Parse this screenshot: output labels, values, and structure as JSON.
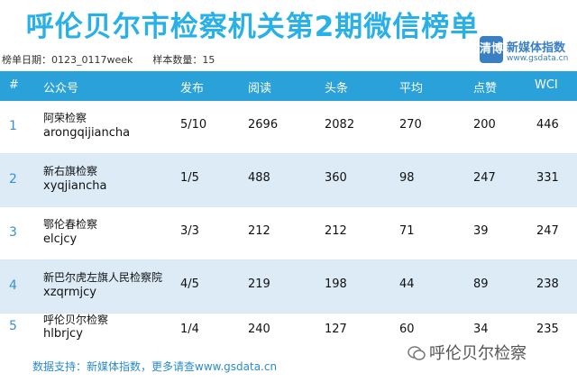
{
  "title": "呼伦贝尔市检察机关第2期微信榜单",
  "logo": {
    "badge": "清博",
    "name": "新媒体指数",
    "url": "www.gsdata.cn"
  },
  "meta": {
    "period": "榜单日期：0123_0117week",
    "sample": "样本数量：15"
  },
  "headers": [
    "#",
    "公众号",
    "发布",
    "阅读",
    "头条",
    "平均",
    "点赞",
    "WCI"
  ],
  "rows": [
    {
      "rank": "1",
      "name": "阿荣检察",
      "account": "arongqijiancha",
      "publish": "5/10",
      "read": "2696",
      "headline": "2082",
      "avg": "270",
      "likes": "200",
      "wci": "446"
    },
    {
      "rank": "2",
      "name": "新右旗检察",
      "account": "xyqjiancha",
      "publish": "1/5",
      "read": "488",
      "headline": "360",
      "avg": "98",
      "likes": "247",
      "wci": "331"
    },
    {
      "rank": "3",
      "name": "鄂伦春检察",
      "account": "elcjcy",
      "publish": "3/3",
      "read": "212",
      "headline": "212",
      "avg": "71",
      "likes": "39",
      "wci": "247"
    },
    {
      "rank": "4",
      "name": "新巴尔虎左旗人民检察院",
      "account": "xzqrmjcy",
      "publish": "4/5",
      "read": "219",
      "headline": "198",
      "avg": "44",
      "likes": "89",
      "wci": "238"
    },
    {
      "rank": "5",
      "name": "呼伦贝尔检察",
      "account": "hlbrjcy",
      "publish": "1/4",
      "read": "240",
      "headline": "127",
      "avg": "60",
      "likes": "34",
      "wci": "235"
    }
  ],
  "footer": "数据支持：新媒体指数，更多请查www.gsdata.cn",
  "watermark": "呼伦贝尔检察",
  "colors": {
    "title": "#29b0e6",
    "header_bg": "#2aa1d9",
    "alt_row": "#dcebf6",
    "link": "#2a8bd0"
  }
}
